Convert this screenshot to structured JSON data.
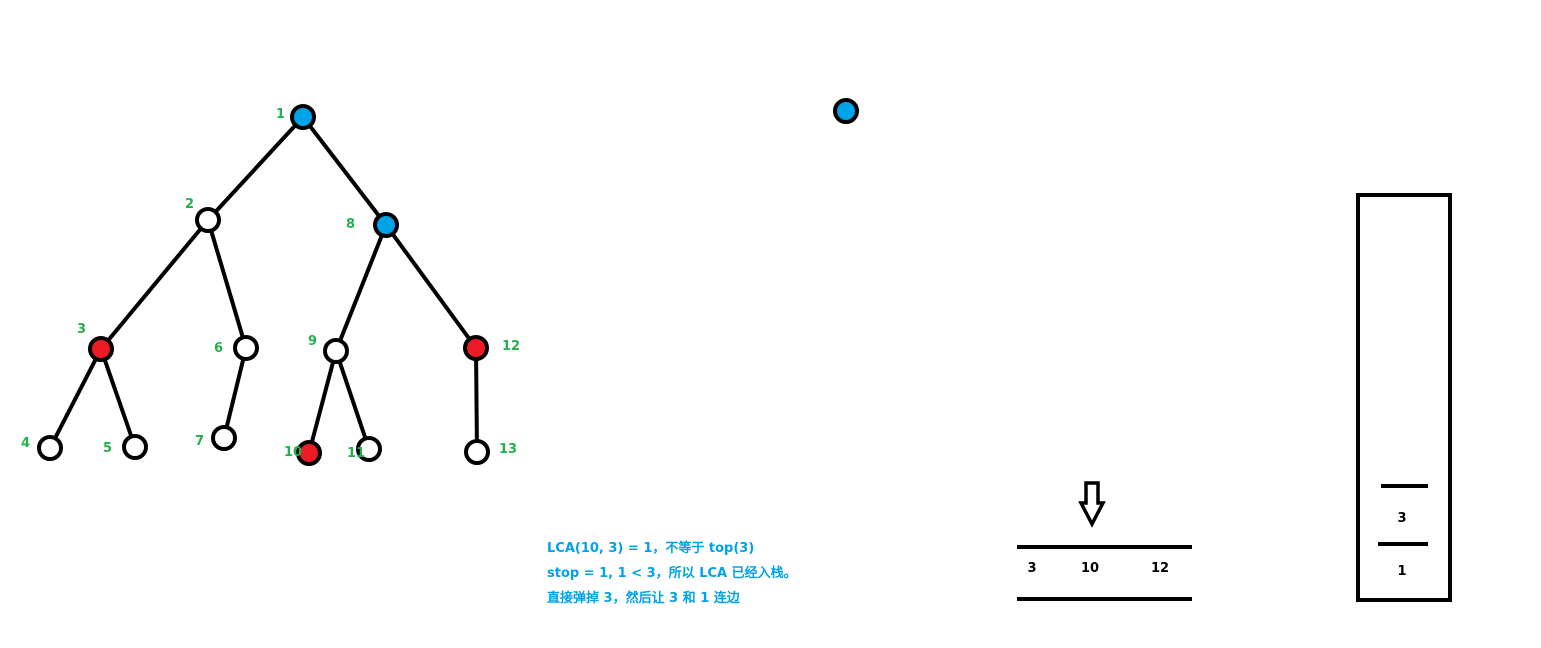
{
  "colors": {
    "label": "#22b14c",
    "note": "#00a2e8",
    "blue_node": "#00a2e8",
    "red_node": "#ed1c24",
    "plain_node": "#ffffff",
    "edge": "#000000"
  },
  "tree": {
    "nodes": [
      {
        "id": "1",
        "label": "1",
        "state": "blue"
      },
      {
        "id": "2",
        "label": "2",
        "state": "plain"
      },
      {
        "id": "3",
        "label": "3",
        "state": "red"
      },
      {
        "id": "4",
        "label": "4",
        "state": "plain"
      },
      {
        "id": "5",
        "label": "5",
        "state": "plain"
      },
      {
        "id": "6",
        "label": "6",
        "state": "plain"
      },
      {
        "id": "7",
        "label": "7",
        "state": "plain"
      },
      {
        "id": "8",
        "label": "8",
        "state": "blue"
      },
      {
        "id": "9",
        "label": "9",
        "state": "plain"
      },
      {
        "id": "10",
        "label": "10",
        "state": "red"
      },
      {
        "id": "11",
        "label": "11",
        "state": "plain"
      },
      {
        "id": "12",
        "label": "12",
        "state": "red"
      },
      {
        "id": "13",
        "label": "13",
        "state": "plain"
      }
    ],
    "edges": [
      [
        "1",
        "2"
      ],
      [
        "1",
        "8"
      ],
      [
        "2",
        "3"
      ],
      [
        "2",
        "6"
      ],
      [
        "3",
        "4"
      ],
      [
        "3",
        "5"
      ],
      [
        "6",
        "7"
      ],
      [
        "8",
        "9"
      ],
      [
        "8",
        "12"
      ],
      [
        "9",
        "10"
      ],
      [
        "9",
        "11"
      ],
      [
        "12",
        "13"
      ]
    ]
  },
  "legend_dot": {
    "state": "blue"
  },
  "sequence": {
    "items": [
      "3",
      "10",
      "12"
    ],
    "pointer": "down-arrow-icon"
  },
  "stack": {
    "items": [
      "1",
      "3"
    ]
  },
  "note": {
    "lines": [
      "LCA(10, 3) = 1，不等于 top(3)",
      "stop = 1, 1 < 3，所以 LCA 已经入栈。",
      "直接弹掉 3，然后让 3 和 1 连边"
    ]
  }
}
